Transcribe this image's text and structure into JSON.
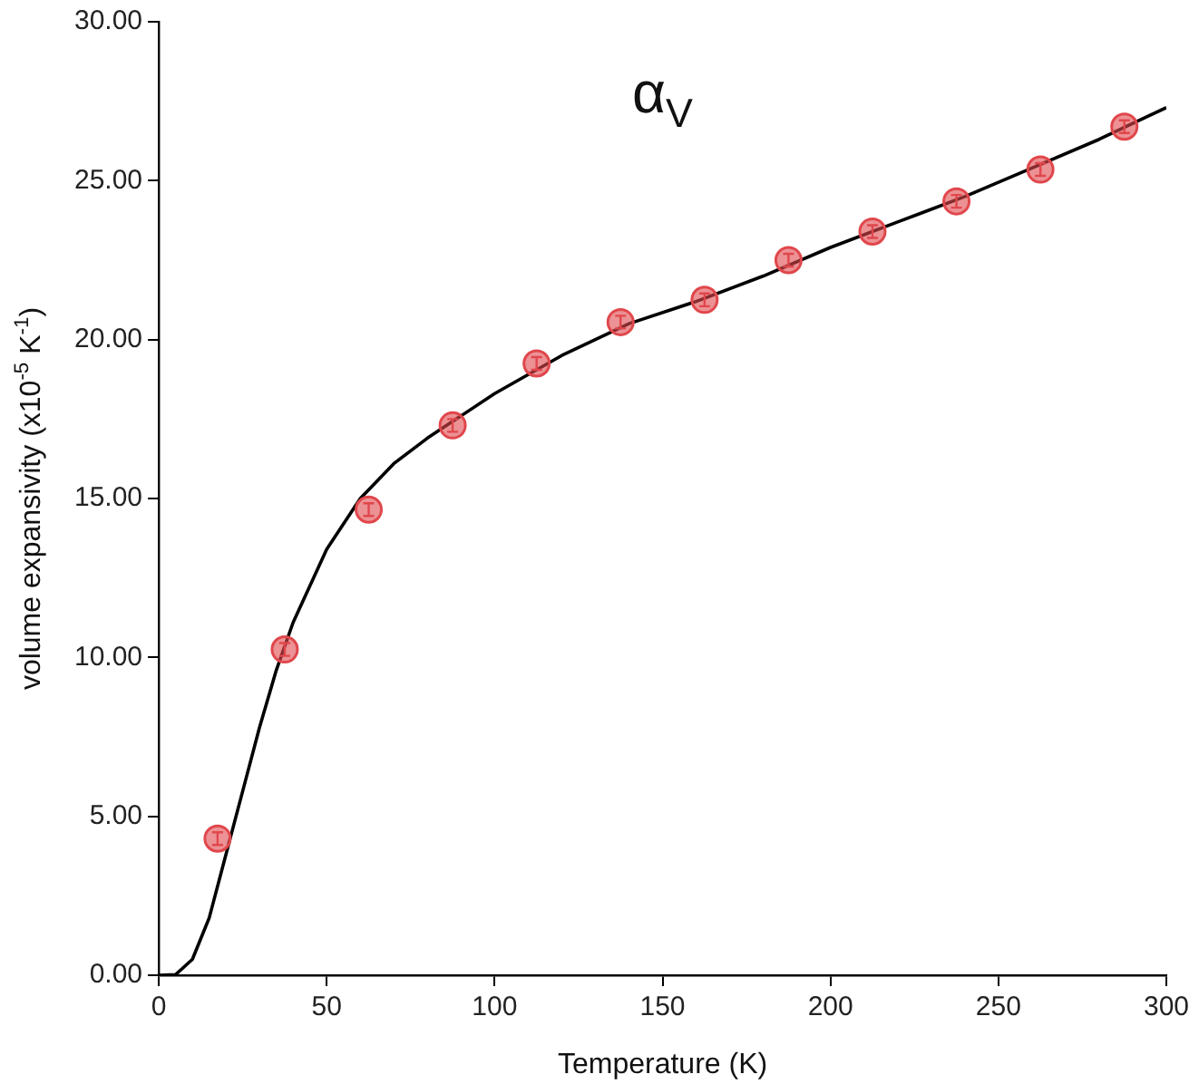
{
  "chart_data": {
    "type": "scatter",
    "xlabel": "Temperature (K)",
    "ylabel": "volume expansivity (x10$^{-5}$ K$^{-1}$)",
    "annotations": [
      "α$_{V}$"
    ],
    "xlim": [
      0,
      300
    ],
    "xticks": [
      0,
      50,
      100,
      150,
      200,
      250,
      300
    ],
    "ylim": [
      0,
      30
    ],
    "yticks": [
      {
        "value": 0,
        "label": "0.00"
      },
      {
        "value": 5,
        "label": "5.00"
      },
      {
        "value": 10,
        "label": "10.00"
      },
      {
        "value": 15,
        "label": "15.00"
      },
      {
        "value": 20,
        "label": "20.00"
      },
      {
        "value": 25,
        "label": "25.00"
      },
      {
        "value": 30,
        "label": "30.00"
      }
    ],
    "grid": false,
    "legend": false,
    "series": [
      {
        "type": "line",
        "color": "#000000",
        "marker": "none",
        "line_style": "solid",
        "x": [
          0,
          5,
          10,
          15,
          20,
          25,
          30,
          35,
          40,
          50,
          60,
          70,
          80,
          90,
          100,
          120,
          140,
          160,
          180,
          200,
          220,
          240,
          260,
          280,
          300
        ],
        "values": [
          0,
          0.02,
          0.5,
          1.8,
          3.8,
          5.8,
          7.8,
          9.6,
          11.1,
          13.4,
          15.0,
          16.1,
          16.9,
          17.6,
          18.3,
          19.5,
          20.5,
          21.2,
          22.0,
          22.9,
          23.7,
          24.5,
          25.4,
          26.3,
          27.3
        ]
      },
      {
        "color": "#e0474c",
        "marker": "circle",
        "x": [
          17.5,
          37.5,
          62.5,
          87.5,
          112.5,
          137.5,
          162.5,
          187.5,
          212.5,
          237.5,
          262.5,
          287.5
        ],
        "values": [
          4.3,
          10.25,
          14.65,
          17.3,
          19.25,
          20.55,
          21.25,
          22.5,
          23.4,
          24.35,
          25.35,
          26.7
        ],
        "errors": [
          0.2,
          0.2,
          0.2,
          0.2,
          0.2,
          0.2,
          0.2,
          0.2,
          0.2,
          0.2,
          0.2,
          0.2
        ]
      }
    ]
  }
}
